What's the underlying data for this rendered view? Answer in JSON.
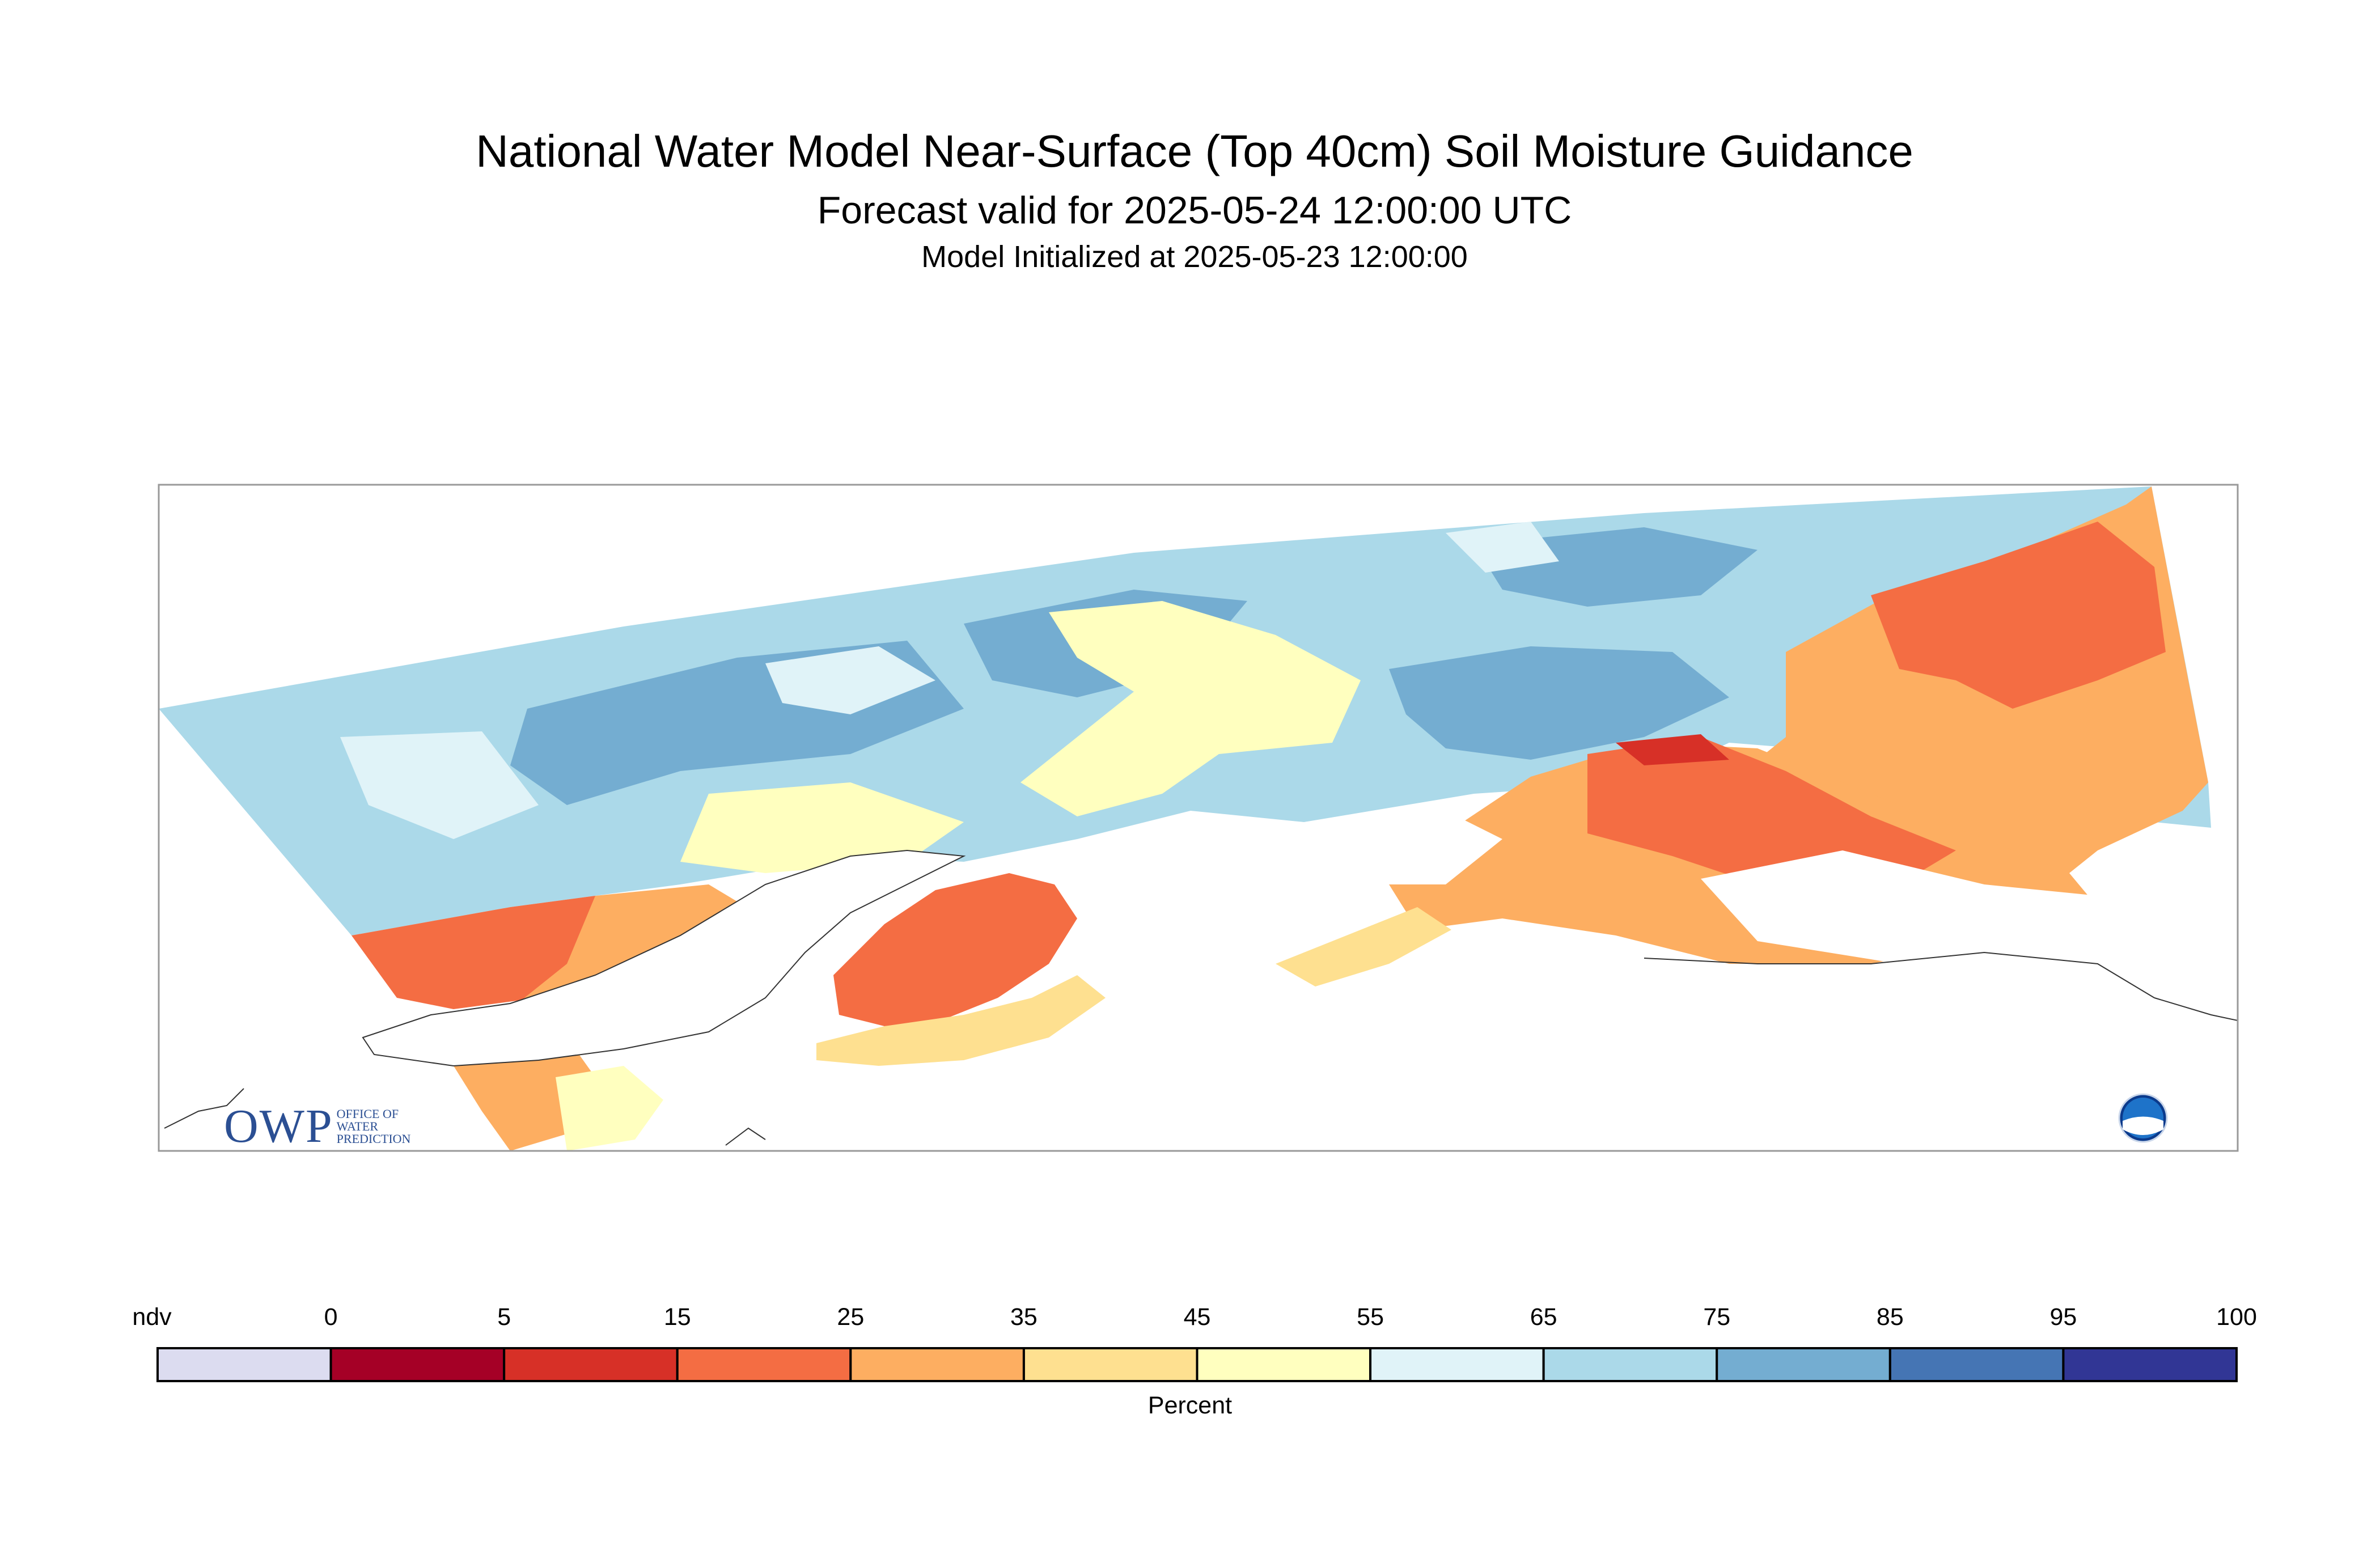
{
  "title": "National Water Model Near-Surface (Top 40cm) Soil Moisture Guidance",
  "subtitle": "Forecast valid for 2025-05-24 12:00:00 UTC",
  "init": "Model Initialized at 2025-05-23 12:00:00",
  "logo": {
    "text": "OWP",
    "lines": [
      "OFFICE OF",
      "WATER",
      "PREDICTION"
    ]
  },
  "noaa_logo_icon": "noaa-logo-icon",
  "colorbar": {
    "label": "Percent",
    "ticks": [
      "ndv",
      "0",
      "5",
      "15",
      "25",
      "35",
      "45",
      "55",
      "65",
      "75",
      "85",
      "95",
      "100"
    ],
    "colors": [
      "#dcdcf0",
      "#a50026",
      "#d73027",
      "#f46d43",
      "#fdae61",
      "#fee090",
      "#ffffbf",
      "#e0f3f8",
      "#abd9e9",
      "#74add1",
      "#4575b4",
      "#313695"
    ]
  },
  "colors": {
    "land_dry_red": "#f46d43",
    "land_very_dry": "#d73027",
    "land_orange": "#fdae61",
    "land_yellow": "#fee090",
    "land_pale": "#ffffbf",
    "land_lightblue": "#abd9e9",
    "land_blue": "#74add1",
    "land_palest": "#e0f3f8",
    "frame": "#999999"
  }
}
